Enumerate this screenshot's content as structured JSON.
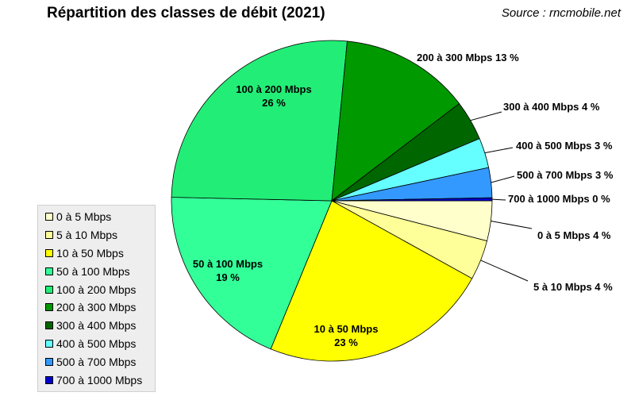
{
  "header": {
    "title": "Répartition des classes de débit (2021)",
    "source": "Source : rncmobile.net"
  },
  "chart_data": {
    "type": "pie",
    "title": "Répartition des classes de débit (2021)",
    "legend_position": "bottom-left",
    "slices": [
      {
        "label": "0 à 5 Mbps",
        "value": 4,
        "color": "#ffffcc",
        "label_text": "0 à 5 Mbps 4 %",
        "placement": "outside"
      },
      {
        "label": "5 à 10 Mbps",
        "value": 4,
        "color": "#ffff99",
        "label_text": "5 à 10 Mbps 4 %",
        "placement": "outside"
      },
      {
        "label": "10 à 50 Mbps",
        "value": 23,
        "color": "#ffff00",
        "label_text": "10 à 50 Mbps",
        "pct_text": "23 %",
        "placement": "inside"
      },
      {
        "label": "50 à 100 Mbps",
        "value": 19,
        "color": "#33ff99",
        "label_text": "50 à 100 Mbps",
        "pct_text": "19 %",
        "placement": "inside"
      },
      {
        "label": "100 à 200 Mbps",
        "value": 26,
        "color": "#22ee77",
        "label_text": "100 à 200 Mbps",
        "pct_text": "26 %",
        "placement": "inside"
      },
      {
        "label": "200 à 300 Mbps",
        "value": 13,
        "color": "#009900",
        "label_text": "200 à 300 Mbps 13 %",
        "placement": "outside"
      },
      {
        "label": "300 à 400 Mbps",
        "value": 4,
        "color": "#006600",
        "label_text": "300 à 400 Mbps  4 %",
        "placement": "outside"
      },
      {
        "label": "400 à 500 Mbps",
        "value": 3,
        "color": "#66ffff",
        "label_text": "400 à 500 Mbps  3 %",
        "placement": "outside"
      },
      {
        "label": "500 à 700 Mbps",
        "value": 3,
        "color": "#3399ff",
        "label_text": "500 à 700 Mbps  3 %",
        "placement": "outside"
      },
      {
        "label": "700 à 1000 Mbps",
        "value": 0.3,
        "color": "#0000cc",
        "label_text": "700 à 1000 Mbps  0 %",
        "placement": "outside"
      }
    ]
  }
}
